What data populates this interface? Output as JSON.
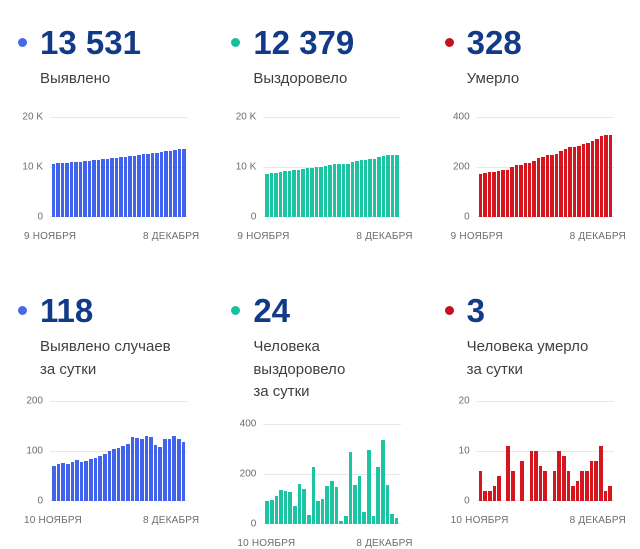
{
  "colors": {
    "confirmed": "#4263eb",
    "recovered": "#1cc4a1",
    "deaths": "#d5161f",
    "stat_number": "#113a87",
    "axis_text": "#6d6d6d",
    "gridline": "#e8e8e8"
  },
  "panels": [
    {
      "id": "confirmed-total",
      "value": "13 531",
      "dot_color": "#4669e8",
      "label_lines": [
        "Выявлено"
      ]
    },
    {
      "id": "recovered-total",
      "value": "12 379",
      "dot_color": "#17bf9e",
      "label_lines": [
        "Выздоровело"
      ]
    },
    {
      "id": "deaths-total",
      "value": "328",
      "dot_color": "#c6101f",
      "label_lines": [
        "Умерло"
      ]
    },
    {
      "id": "confirmed-daily",
      "value": "118",
      "dot_color": "#4669e8",
      "label_lines": [
        "Выявлено случаев",
        "за сутки"
      ]
    },
    {
      "id": "recovered-daily",
      "value": "24",
      "dot_color": "#17bf9e",
      "label_lines": [
        "Человека выздоровело",
        "за сутки"
      ]
    },
    {
      "id": "deaths-daily",
      "value": "3",
      "dot_color": "#c6101f",
      "label_lines": [
        "Человека умерло",
        "за сутки"
      ]
    }
  ],
  "chart_data": [
    {
      "type": "bar",
      "title": "Выявлено (всего)",
      "color": "#4263eb",
      "y_max": 20000,
      "y_ticks": [
        "20 K",
        "10 K",
        "0"
      ],
      "x_labels": [
        "9 НОЯБРЯ",
        "8 ДЕКАБРЯ"
      ],
      "grid": true,
      "values": [
        10546,
        10616,
        10690,
        10766,
        10841,
        10919,
        11001,
        11080,
        11160,
        11244,
        11331,
        11421,
        11516,
        11616,
        11720,
        11827,
        11937,
        12051,
        12179,
        12305,
        12429,
        12560,
        12688,
        12801,
        12910,
        13034,
        13159,
        13289,
        13413,
        13531
      ]
    },
    {
      "type": "bar",
      "title": "Выздоровело (всего)",
      "color": "#1cc4a1",
      "y_max": 20000,
      "y_ticks": [
        "20 K",
        "10 K",
        "0"
      ],
      "x_labels": [
        "9 НОЯБРЯ",
        "8 ДЕКАБРЯ"
      ],
      "grid": true,
      "values": [
        8587,
        8677,
        8772,
        8882,
        9017,
        9147,
        9272,
        9342,
        9502,
        9642,
        9677,
        9902,
        9992,
        10092,
        10242,
        10412,
        10560,
        10570,
        10600,
        10885,
        11040,
        11230,
        11275,
        11570,
        11600,
        11825,
        12160,
        12315,
        12355,
        12379
      ]
    },
    {
      "type": "bar",
      "title": "Умерло (всего)",
      "color": "#d5161f",
      "y_max": 400,
      "y_ticks": [
        "400",
        "200",
        "0"
      ],
      "x_labels": [
        "9 НОЯБРЯ",
        "8 ДЕКАБРЯ"
      ],
      "grid": true,
      "values": [
        170,
        176,
        178,
        180,
        183,
        188,
        188,
        199,
        205,
        205,
        213,
        213,
        223,
        233,
        240,
        246,
        246,
        252,
        262,
        271,
        277,
        280,
        284,
        290,
        296,
        304,
        312,
        323,
        325,
        328
      ]
    },
    {
      "type": "bar",
      "title": "Выявлено случаев за сутки",
      "color": "#4263eb",
      "y_max": 200,
      "y_ticks": [
        "200",
        "100",
        "0"
      ],
      "x_labels": [
        "10 НОЯБРЯ",
        "8 ДЕКАБРЯ"
      ],
      "grid": true,
      "values": [
        70,
        74,
        76,
        75,
        78,
        82,
        79,
        80,
        84,
        87,
        90,
        95,
        100,
        104,
        107,
        110,
        114,
        128,
        126,
        124,
        131,
        128,
        113,
        109,
        124,
        125,
        130,
        124,
        118
      ]
    },
    {
      "type": "bar",
      "title": "Человека выздоровело за сутки",
      "color": "#1cc4a1",
      "y_max": 400,
      "y_ticks": [
        "400",
        "200",
        "0"
      ],
      "x_labels": [
        "10 НОЯБРЯ",
        "8 ДЕКАБРЯ"
      ],
      "grid": true,
      "values": [
        90,
        95,
        110,
        135,
        130,
        125,
        70,
        160,
        140,
        35,
        225,
        90,
        100,
        150,
        170,
        148,
        10,
        30,
        285,
        155,
        190,
        45,
        295,
        30,
        225,
        335,
        155,
        40,
        24
      ]
    },
    {
      "type": "bar",
      "title": "Человека умерло за сутки",
      "color": "#d5161f",
      "y_max": 20,
      "y_ticks": [
        "20",
        "10",
        "0"
      ],
      "x_labels": [
        "10 НОЯБРЯ",
        "8 ДЕКАБРЯ"
      ],
      "grid": true,
      "values": [
        6,
        2,
        2,
        3,
        5,
        0,
        11,
        6,
        0,
        8,
        0,
        10,
        10,
        7,
        6,
        0,
        6,
        10,
        9,
        6,
        3,
        4,
        6,
        6,
        8,
        8,
        11,
        2,
        3
      ]
    }
  ]
}
